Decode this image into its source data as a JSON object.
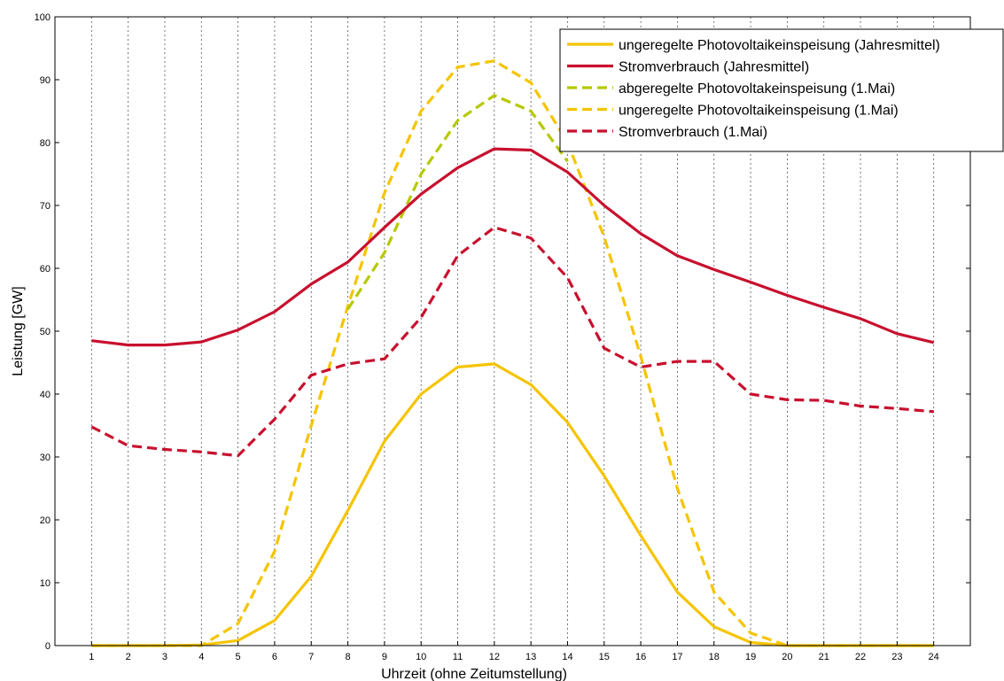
{
  "chart_data": {
    "type": "line",
    "xlabel": "Uhrzeit (ohne Zeitumstellung)",
    "ylabel": "Leistung [GW]",
    "xlim": [
      0,
      25
    ],
    "ylim": [
      0,
      100
    ],
    "x": [
      1,
      2,
      3,
      4,
      5,
      6,
      7,
      8,
      9,
      10,
      11,
      12,
      13,
      14,
      15,
      16,
      17,
      18,
      19,
      20,
      21,
      22,
      23,
      24
    ],
    "x_ticks": [
      1,
      2,
      3,
      4,
      5,
      6,
      7,
      8,
      9,
      10,
      11,
      12,
      13,
      14,
      15,
      16,
      17,
      18,
      19,
      20,
      21,
      22,
      23,
      24
    ],
    "y_ticks": [
      0,
      10,
      20,
      30,
      40,
      50,
      60,
      70,
      80,
      90,
      100
    ],
    "grid": "vertical dotted",
    "legend_position": "top-right",
    "series": [
      {
        "name": "ungeregelte Photovoltaikeinspeisung (Jahresmittel)",
        "color": "#f5c400",
        "style": "solid",
        "values": [
          0,
          0,
          0,
          0.1,
          0.8,
          4,
          11,
          21.5,
          32.5,
          40,
          44.3,
          44.8,
          41.5,
          35.5,
          27,
          17.5,
          8.5,
          3,
          0.5,
          0,
          0,
          0,
          0,
          0
        ]
      },
      {
        "name": "Stromverbrauch (Jahresmittel)",
        "color": "#c8102e",
        "style": "solid",
        "values": [
          48.5,
          47.8,
          47.8,
          48.3,
          50.2,
          53.1,
          57.5,
          61,
          66.5,
          71.8,
          76,
          79,
          78.8,
          75.3,
          70,
          65.5,
          62,
          59.8,
          57.8,
          55.7,
          53.8,
          52,
          49.6,
          48.2
        ]
      },
      {
        "name": "abgeregelte Photovoltakeinspeisung (1.Mai)",
        "color": "#b5c900",
        "style": "dashed",
        "values": [
          0,
          0,
          0,
          0,
          0,
          0,
          0,
          53.5,
          62.5,
          75,
          83.5,
          87.5,
          85,
          77,
          0,
          0,
          0,
          0,
          0,
          0,
          0,
          0,
          0,
          0
        ]
      },
      {
        "name": "ungeregelte Photovoltaikeinspeisung (1.Mai)",
        "color": "#f5c400",
        "style": "dashed",
        "values": [
          0,
          0,
          0,
          0,
          3.5,
          15,
          35,
          54,
          72,
          85,
          92,
          93,
          89.5,
          80,
          65,
          46,
          25,
          8.5,
          2,
          0,
          0,
          0,
          0,
          0
        ]
      },
      {
        "name": "Stromverbrauch (1.Mai)",
        "color": "#c8102e",
        "style": "dashed",
        "values": [
          34.8,
          31.8,
          31.2,
          30.8,
          30.2,
          36,
          43,
          44.8,
          45.6,
          52.2,
          62,
          66.5,
          64.8,
          58.5,
          47.3,
          44.3,
          45.2,
          45.2,
          40,
          39.1,
          39,
          38.1,
          37.7,
          37.2
        ]
      }
    ]
  }
}
